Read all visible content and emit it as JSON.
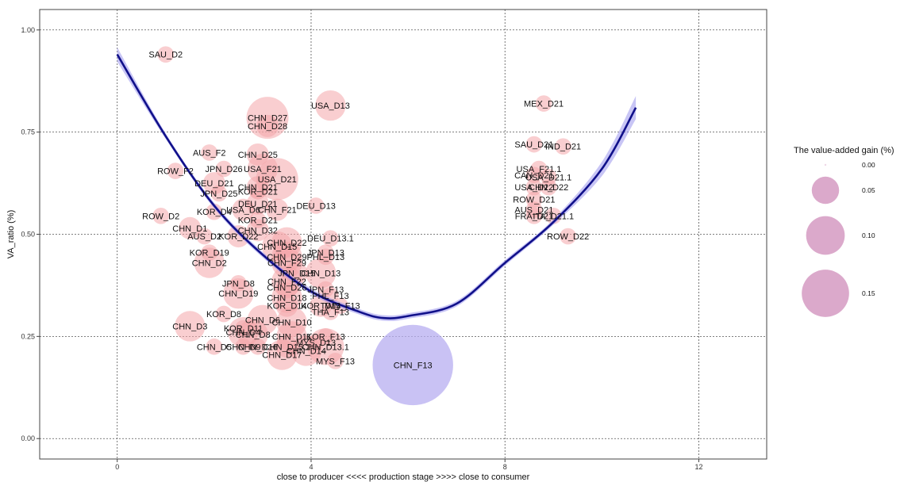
{
  "chart_data": {
    "type": "scatter",
    "title": "",
    "xlabel": "close to producer  <<<<  production stage  >>>>  close to consumer",
    "ylabel": "VA_ratio (%)",
    "xlim": [
      -1.6,
      13.4
    ],
    "ylim": [
      -0.05,
      1.05
    ],
    "x_ticks": [
      0,
      4,
      8,
      12
    ],
    "x_tick_labels": [
      "0",
      "4",
      "8",
      "12"
    ],
    "y_ticks": [
      0.0,
      0.25,
      0.5,
      0.75,
      1.0
    ],
    "y_tick_labels": [
      "0.00",
      "0.25",
      "0.50",
      "0.75",
      "1.00"
    ],
    "grid": true,
    "legend": {
      "title": "The value-added gain (%)",
      "placement": "right",
      "entries": [
        {
          "label": "0.00",
          "size": 0.0
        },
        {
          "label": "0.05",
          "size": 0.05
        },
        {
          "label": "0.10",
          "size": 0.1
        },
        {
          "label": "0.15",
          "size": 0.15
        }
      ]
    },
    "colors": {
      "point": "#f4a6aa",
      "highlight": "#b7aef0",
      "curve": "#10108a",
      "band": "#9a96ec",
      "legend_bubble": "#d59ac2"
    },
    "fit_curve": {
      "x": [
        0,
        1,
        2,
        3,
        4,
        5,
        5.5,
        6,
        7,
        8,
        9,
        10,
        10.7
      ],
      "y": [
        0.94,
        0.74,
        0.57,
        0.45,
        0.36,
        0.31,
        0.295,
        0.3,
        0.33,
        0.43,
        0.53,
        0.66,
        0.81
      ]
    },
    "points": [
      {
        "label": "SAU_D2",
        "x": 1.0,
        "y": 0.94,
        "size": 0.005
      },
      {
        "label": "USA_D13",
        "x": 4.4,
        "y": 0.815,
        "size": 0.02
      },
      {
        "label": "CHN_D27",
        "x": 3.1,
        "y": 0.785,
        "size": 0.04
      },
      {
        "label": "CHN_D28",
        "x": 3.1,
        "y": 0.765,
        "size": 0.01
      },
      {
        "label": "MEX_D21",
        "x": 8.8,
        "y": 0.82,
        "size": 0.005
      },
      {
        "label": "CHN_D25",
        "x": 2.9,
        "y": 0.695,
        "size": 0.01
      },
      {
        "label": "AUS_F2",
        "x": 1.9,
        "y": 0.7,
        "size": 0.005
      },
      {
        "label": "SAU_D21",
        "x": 8.6,
        "y": 0.72,
        "size": 0.005
      },
      {
        "label": "IND_D21",
        "x": 9.2,
        "y": 0.715,
        "size": 0.005
      },
      {
        "label": "USA_F21",
        "x": 3.0,
        "y": 0.66,
        "size": 0.02
      },
      {
        "label": "ROW_F2",
        "x": 1.2,
        "y": 0.655,
        "size": 0.005
      },
      {
        "label": "JPN_D26",
        "x": 2.2,
        "y": 0.66,
        "size": 0.005
      },
      {
        "label": "USA_D21",
        "x": 3.3,
        "y": 0.635,
        "size": 0.04
      },
      {
        "label": "DEU_D21",
        "x": 2.0,
        "y": 0.625,
        "size": 0.01
      },
      {
        "label": "USA_F21.1",
        "x": 8.7,
        "y": 0.66,
        "size": 0.005
      },
      {
        "label": "CAN_D21",
        "x": 8.6,
        "y": 0.645,
        "size": 0.005
      },
      {
        "label": "USA_D21.1",
        "x": 8.9,
        "y": 0.64,
        "size": 0.005
      },
      {
        "label": "USA_D22",
        "x": 8.6,
        "y": 0.615,
        "size": 0.005
      },
      {
        "label": "CHN_D22",
        "x": 8.9,
        "y": 0.615,
        "size": 0.005
      },
      {
        "label": "JPN_D25",
        "x": 2.1,
        "y": 0.6,
        "size": 0.005
      },
      {
        "label": "KOR_D21",
        "x": 2.9,
        "y": 0.605,
        "size": 0.005
      },
      {
        "label": "CHN_D21",
        "x": 2.9,
        "y": 0.615,
        "size": 0.01
      },
      {
        "label": "ROW_D21",
        "x": 8.6,
        "y": 0.585,
        "size": 0.005
      },
      {
        "label": "DEU_D13",
        "x": 4.1,
        "y": 0.57,
        "size": 0.005
      },
      {
        "label": "DEU_D21",
        "x": 2.9,
        "y": 0.575,
        "size": 0.01
      },
      {
        "label": "KOR_D4",
        "x": 2.0,
        "y": 0.555,
        "size": 0.005
      },
      {
        "label": "USA_D6",
        "x": 2.6,
        "y": 0.56,
        "size": 0.01
      },
      {
        "label": "CHN_F21",
        "x": 3.3,
        "y": 0.56,
        "size": 0.01
      },
      {
        "label": "AUS_D21",
        "x": 8.6,
        "y": 0.56,
        "size": 0.005
      },
      {
        "label": "FRA_D21",
        "x": 8.6,
        "y": 0.545,
        "size": 0.005
      },
      {
        "label": "ITA_D21.1",
        "x": 9.0,
        "y": 0.545,
        "size": 0.005
      },
      {
        "label": "ROW_D2",
        "x": 0.9,
        "y": 0.545,
        "size": 0.005
      },
      {
        "label": "KOR_D21",
        "x": 2.9,
        "y": 0.535,
        "size": 0.005
      },
      {
        "label": "CHN_D1",
        "x": 1.5,
        "y": 0.515,
        "size": 0.01
      },
      {
        "label": "CHN_D32",
        "x": 2.9,
        "y": 0.51,
        "size": 0.01
      },
      {
        "label": "AUS_D2",
        "x": 1.8,
        "y": 0.495,
        "size": 0.005
      },
      {
        "label": "KOR_D22",
        "x": 2.5,
        "y": 0.495,
        "size": 0.01
      },
      {
        "label": "DEU_D13.1",
        "x": 4.4,
        "y": 0.49,
        "size": 0.005
      },
      {
        "label": "ROW_D22",
        "x": 9.3,
        "y": 0.495,
        "size": 0.005
      },
      {
        "label": "CHN_D22",
        "x": 3.5,
        "y": 0.48,
        "size": 0.02
      },
      {
        "label": "CHN_D15",
        "x": 3.3,
        "y": 0.47,
        "size": 0.02
      },
      {
        "label": "KOR_D19",
        "x": 1.9,
        "y": 0.455,
        "size": 0.005
      },
      {
        "label": "JPN_D13",
        "x": 4.3,
        "y": 0.455,
        "size": 0.005
      },
      {
        "label": "CHN_D29",
        "x": 3.5,
        "y": 0.445,
        "size": 0.02
      },
      {
        "label": "PHL_D13",
        "x": 4.3,
        "y": 0.445,
        "size": 0.005
      },
      {
        "label": "CHN_D2",
        "x": 1.9,
        "y": 0.43,
        "size": 0.02
      },
      {
        "label": "CHN_F29",
        "x": 3.5,
        "y": 0.43,
        "size": 0.02
      },
      {
        "label": "JPN_D15",
        "x": 3.7,
        "y": 0.405,
        "size": 0.01
      },
      {
        "label": "CHN_D13",
        "x": 4.2,
        "y": 0.405,
        "size": 0.02
      },
      {
        "label": "CHN_F22",
        "x": 3.5,
        "y": 0.385,
        "size": 0.02
      },
      {
        "label": "JPN_D8",
        "x": 2.5,
        "y": 0.38,
        "size": 0.005
      },
      {
        "label": "CHN_D26",
        "x": 3.5,
        "y": 0.37,
        "size": 0.01
      },
      {
        "label": "JPN_F13",
        "x": 4.3,
        "y": 0.365,
        "size": 0.005
      },
      {
        "label": "CHN_D19",
        "x": 2.5,
        "y": 0.355,
        "size": 0.02
      },
      {
        "label": "CHN_D18",
        "x": 3.5,
        "y": 0.345,
        "size": 0.02
      },
      {
        "label": "PHL_F13",
        "x": 4.4,
        "y": 0.35,
        "size": 0.005
      },
      {
        "label": "KOR_D14",
        "x": 3.5,
        "y": 0.325,
        "size": 0.01
      },
      {
        "label": "KOR_D13",
        "x": 4.2,
        "y": 0.325,
        "size": 0.01
      },
      {
        "label": "TWN_F13",
        "x": 4.6,
        "y": 0.325,
        "size": 0.005
      },
      {
        "label": "THA_F13",
        "x": 4.4,
        "y": 0.31,
        "size": 0.005
      },
      {
        "label": "KOR_D8",
        "x": 2.2,
        "y": 0.305,
        "size": 0.005
      },
      {
        "label": "CHN_D6",
        "x": 3.0,
        "y": 0.29,
        "size": 0.02
      },
      {
        "label": "CHN_D10",
        "x": 3.6,
        "y": 0.285,
        "size": 0.02
      },
      {
        "label": "CHN_D3",
        "x": 1.5,
        "y": 0.275,
        "size": 0.02
      },
      {
        "label": "KOR_D11",
        "x": 2.6,
        "y": 0.27,
        "size": 0.005
      },
      {
        "label": "CHN_D4",
        "x": 2.6,
        "y": 0.26,
        "size": 0.02
      },
      {
        "label": "CHN_D8",
        "x": 2.8,
        "y": 0.255,
        "size": 0.02
      },
      {
        "label": "CHN_D11",
        "x": 3.6,
        "y": 0.25,
        "size": 0.02
      },
      {
        "label": "KOR_F13",
        "x": 4.3,
        "y": 0.25,
        "size": 0.005
      },
      {
        "label": "MYS_D13",
        "x": 4.1,
        "y": 0.235,
        "size": 0.005
      },
      {
        "label": "CHN_D5",
        "x": 2.0,
        "y": 0.225,
        "size": 0.005
      },
      {
        "label": "CHN_D9",
        "x": 2.6,
        "y": 0.225,
        "size": 0.005
      },
      {
        "label": "CHN_D16",
        "x": 2.9,
        "y": 0.225,
        "size": 0.005
      },
      {
        "label": "CHN_D15.1",
        "x": 3.5,
        "y": 0.225,
        "size": 0.01
      },
      {
        "label": "CHN_D13.1",
        "x": 4.3,
        "y": 0.225,
        "size": 0.03
      },
      {
        "label": "CHN_D14",
        "x": 3.9,
        "y": 0.215,
        "size": 0.02
      },
      {
        "label": "CHN_D17",
        "x": 3.4,
        "y": 0.205,
        "size": 0.02
      },
      {
        "label": "MYS_F13",
        "x": 4.5,
        "y": 0.19,
        "size": 0.005
      },
      {
        "label": "CHN_F13",
        "x": 6.1,
        "y": 0.18,
        "size": 0.155
      }
    ]
  }
}
